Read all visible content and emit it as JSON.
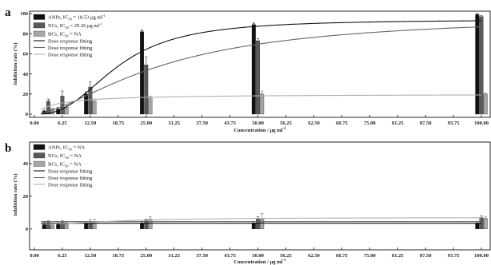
{
  "figure": {
    "x_ticks": [
      "0.00",
      "6.25",
      "12.50",
      "18.75",
      "25.00",
      "31.25",
      "37.50",
      "43.75",
      "50.00",
      "56.25",
      "62.50",
      "68.75",
      "75.00",
      "81.25",
      "87.50",
      "93.75",
      "100.00"
    ],
    "x_label": "Concentration / μg ml",
    "x_label_sup": "-1",
    "colors": {
      "anps": "#111111",
      "ncs": "#5a5a5a",
      "bcs": "#a6a6a6"
    }
  },
  "chart_data": [
    {
      "panel_label": "a",
      "type": "bar",
      "ylabel": "Inhibition rate (%)",
      "ylim": [
        0,
        100
      ],
      "yticks": [
        "0",
        "20",
        "40",
        "60",
        "80",
        "100"
      ],
      "x": [
        3.125,
        6.25,
        12.5,
        25,
        50,
        100
      ],
      "legend": {
        "position": "top-left",
        "bars": [
          {
            "key": "anps",
            "name": "ANPs, IC",
            "sub": "50",
            "rest": " = 18.53 μg ml",
            "sup": "-1"
          },
          {
            "key": "ncs",
            "name": "NCs, IC",
            "sub": "50",
            "rest": " = 29.26 μg ml",
            "sup": "-1"
          },
          {
            "key": "bcs",
            "name": "BCs, IC",
            "sub": "50",
            "rest": " = NA",
            "sup": ""
          }
        ],
        "fits": [
          {
            "key": "anps",
            "name": "Dose response fitting"
          },
          {
            "key": "ncs",
            "name": "Dose response fitting"
          },
          {
            "key": "bcs",
            "name": "Dose response fitting"
          }
        ]
      },
      "series": [
        {
          "key": "anps",
          "values": [
            3,
            5,
            20,
            82,
            89,
            99
          ],
          "errors": [
            1,
            1.5,
            2,
            1.5,
            1.5,
            1
          ]
        },
        {
          "key": "ncs",
          "values": [
            13,
            18,
            27,
            49,
            73,
            97
          ],
          "errors": [
            2,
            5,
            5,
            8,
            2,
            1
          ]
        },
        {
          "key": "bcs",
          "values": [
            5,
            7,
            13,
            17,
            20,
            20
          ],
          "errors": [
            1,
            2,
            2,
            1,
            3,
            1
          ]
        }
      ],
      "fits": [
        {
          "key": "anps",
          "ic50": 18.53,
          "top": 94,
          "bottom": 0,
          "hill": 2.6
        },
        {
          "key": "ncs",
          "ic50": 29.26,
          "top": 99,
          "bottom": 0,
          "hill": 1.6
        },
        {
          "key": "bcs",
          "ic50": 5,
          "top": 20,
          "bottom": 0,
          "hill": 1.0
        }
      ]
    },
    {
      "panel_label": "b",
      "type": "bar",
      "ylabel": "Inhibition rate (%)",
      "ylim": [
        -3,
        40
      ],
      "yticks": [
        "0",
        "20",
        "40"
      ],
      "ytick_values": [
        0,
        20,
        40
      ],
      "x": [
        3.125,
        6.25,
        12.5,
        25,
        50,
        100
      ],
      "legend": {
        "position": "top-left",
        "bars": [
          {
            "key": "anps",
            "name": "ANPs, IC",
            "sub": "50",
            "rest": " = NA",
            "sup": ""
          },
          {
            "key": "ncs",
            "name": "NCs, IC",
            "sub": "50",
            "rest": " = NA",
            "sup": ""
          },
          {
            "key": "bcs",
            "name": "BCs, IC",
            "sub": "50",
            "rest": " = NA",
            "sup": ""
          }
        ],
        "fits": [
          {
            "key": "anps",
            "name": "Dose response fitting"
          },
          {
            "key": "ncs",
            "name": "Dose response fitting"
          },
          {
            "key": "bcs",
            "name": "Dose response fitting"
          }
        ]
      },
      "series": [
        {
          "key": "anps",
          "values": [
            3.5,
            3.5,
            3.5,
            3.5,
            3.5,
            3.5
          ],
          "errors": [
            1,
            1,
            1,
            1,
            1,
            1
          ]
        },
        {
          "key": "ncs",
          "values": [
            4,
            4,
            4.5,
            5,
            6.5,
            7
          ],
          "errors": [
            1,
            1,
            1,
            1,
            1,
            1
          ]
        },
        {
          "key": "bcs",
          "values": [
            2.5,
            3,
            4.5,
            6,
            6.5,
            6.5
          ],
          "errors": [
            1,
            1,
            1.5,
            1.5,
            3,
            1
          ]
        }
      ],
      "fits": [
        {
          "key": "anps",
          "flat": 3.5
        },
        {
          "key": "ncs",
          "flat": 4.5
        },
        {
          "key": "bcs",
          "ic50": 20,
          "top": 7,
          "bottom": 3,
          "hill": 2.0
        }
      ]
    }
  ]
}
